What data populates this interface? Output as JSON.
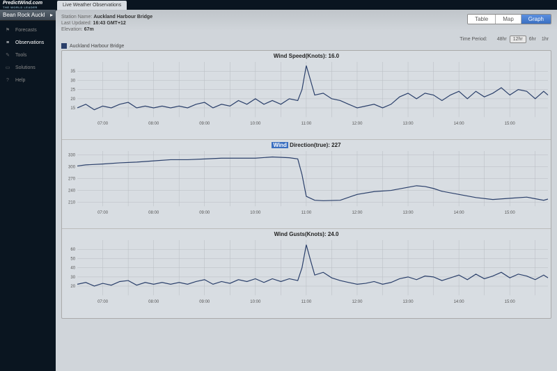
{
  "brand": {
    "name": "PredictWind.com",
    "tagline": "THE WORLD LEADER"
  },
  "station_selector": "Bean Rock Auckl",
  "nav": [
    {
      "icon": "flag",
      "label": "Forecasts",
      "active": false
    },
    {
      "icon": "bars",
      "label": "Observations",
      "active": true
    },
    {
      "icon": "wrench",
      "label": "Tools",
      "active": false
    },
    {
      "icon": "doc",
      "label": "Solutions",
      "active": false
    },
    {
      "icon": "help",
      "label": "Help",
      "active": false
    }
  ],
  "tab_label": "Live Weather Observations",
  "station": {
    "name_label": "Station Name:",
    "name": "Auckland Harbour Bridge",
    "updated_label": "Last Updated:",
    "updated": "16:43 GMT+12",
    "elevation_label": "Elevation:",
    "elevation": "67m"
  },
  "views": [
    {
      "label": "Table",
      "active": false
    },
    {
      "label": "Map",
      "active": false
    },
    {
      "label": "Graph",
      "active": true
    }
  ],
  "period": {
    "label": "Time Period:",
    "options": [
      {
        "label": "48hr",
        "active": false
      },
      {
        "label": "12hr",
        "active": true
      },
      {
        "label": "6hr",
        "active": false
      },
      {
        "label": "1hr",
        "active": false
      }
    ]
  },
  "legend": "Auckland Harbour Bridge",
  "x_axis": {
    "start_min": 390,
    "end_min": 945,
    "ticks": [
      "07:00",
      "08:00",
      "09:00",
      "10:00",
      "11:00",
      "12:00",
      "13:00",
      "14:00",
      "15:00"
    ],
    "tick_positions": [
      420,
      480,
      540,
      600,
      660,
      720,
      780,
      840,
      900
    ]
  },
  "charts": [
    {
      "title_prefix": "Wind Speed(Knots): ",
      "value": "16.0",
      "hilite": false,
      "ylim": [
        10,
        40
      ],
      "yticks": [
        15,
        20,
        25,
        30,
        35
      ],
      "ytick_labels": [
        "15",
        "20",
        "25",
        "30",
        "35"
      ],
      "color": "#2a3f6a",
      "data": [
        [
          390,
          15
        ],
        [
          400,
          17
        ],
        [
          410,
          14
        ],
        [
          420,
          16
        ],
        [
          430,
          15
        ],
        [
          440,
          17
        ],
        [
          450,
          18
        ],
        [
          460,
          15
        ],
        [
          470,
          16
        ],
        [
          480,
          15
        ],
        [
          490,
          16
        ],
        [
          500,
          15
        ],
        [
          510,
          16
        ],
        [
          520,
          15
        ],
        [
          530,
          17
        ],
        [
          540,
          18
        ],
        [
          550,
          15
        ],
        [
          560,
          17
        ],
        [
          570,
          16
        ],
        [
          580,
          19
        ],
        [
          590,
          17
        ],
        [
          600,
          20
        ],
        [
          610,
          17
        ],
        [
          620,
          19
        ],
        [
          630,
          17
        ],
        [
          640,
          20
        ],
        [
          650,
          19
        ],
        [
          655,
          25
        ],
        [
          660,
          38
        ],
        [
          665,
          30
        ],
        [
          670,
          22
        ],
        [
          680,
          23
        ],
        [
          690,
          20
        ],
        [
          700,
          19
        ],
        [
          710,
          17
        ],
        [
          720,
          15
        ],
        [
          730,
          16
        ],
        [
          740,
          17
        ],
        [
          750,
          15
        ],
        [
          760,
          17
        ],
        [
          770,
          21
        ],
        [
          780,
          23
        ],
        [
          790,
          20
        ],
        [
          800,
          23
        ],
        [
          810,
          22
        ],
        [
          820,
          19
        ],
        [
          830,
          22
        ],
        [
          840,
          24
        ],
        [
          850,
          20
        ],
        [
          860,
          24
        ],
        [
          870,
          21
        ],
        [
          880,
          23
        ],
        [
          890,
          26
        ],
        [
          900,
          22
        ],
        [
          910,
          25
        ],
        [
          920,
          24
        ],
        [
          930,
          20
        ],
        [
          940,
          24
        ],
        [
          945,
          22
        ]
      ]
    },
    {
      "title_prefix": "Direction(true): ",
      "title_prefix_hilite": "Wind",
      "value": "227",
      "hilite": true,
      "ylim": [
        200,
        340
      ],
      "yticks": [
        210,
        240,
        270,
        300,
        330
      ],
      "ytick_labels": [
        "210",
        "240",
        "270",
        "300",
        "330"
      ],
      "color": "#2a3f6a",
      "data": [
        [
          390,
          302
        ],
        [
          400,
          305
        ],
        [
          420,
          307
        ],
        [
          440,
          310
        ],
        [
          460,
          312
        ],
        [
          480,
          315
        ],
        [
          500,
          318
        ],
        [
          520,
          318
        ],
        [
          540,
          320
        ],
        [
          560,
          322
        ],
        [
          580,
          322
        ],
        [
          600,
          322
        ],
        [
          620,
          325
        ],
        [
          640,
          323
        ],
        [
          650,
          320
        ],
        [
          655,
          280
        ],
        [
          660,
          225
        ],
        [
          670,
          215
        ],
        [
          680,
          214
        ],
        [
          700,
          215
        ],
        [
          720,
          230
        ],
        [
          740,
          237
        ],
        [
          760,
          240
        ],
        [
          780,
          248
        ],
        [
          790,
          252
        ],
        [
          800,
          250
        ],
        [
          810,
          245
        ],
        [
          820,
          238
        ],
        [
          840,
          230
        ],
        [
          860,
          222
        ],
        [
          880,
          217
        ],
        [
          900,
          220
        ],
        [
          920,
          223
        ],
        [
          940,
          215
        ],
        [
          945,
          218
        ]
      ]
    },
    {
      "title_prefix": "Wind Gusts(Knots): ",
      "value": "24.0",
      "hilite": false,
      "ylim": [
        10,
        70
      ],
      "yticks": [
        20,
        30,
        40,
        50,
        60
      ],
      "ytick_labels": [
        "20",
        "30",
        "40",
        "50",
        "60"
      ],
      "color": "#2a3f6a",
      "data": [
        [
          390,
          22
        ],
        [
          400,
          24
        ],
        [
          410,
          20
        ],
        [
          420,
          23
        ],
        [
          430,
          21
        ],
        [
          440,
          25
        ],
        [
          450,
          26
        ],
        [
          460,
          21
        ],
        [
          470,
          24
        ],
        [
          480,
          22
        ],
        [
          490,
          24
        ],
        [
          500,
          22
        ],
        [
          510,
          24
        ],
        [
          520,
          22
        ],
        [
          530,
          25
        ],
        [
          540,
          27
        ],
        [
          550,
          22
        ],
        [
          560,
          25
        ],
        [
          570,
          23
        ],
        [
          580,
          27
        ],
        [
          590,
          25
        ],
        [
          600,
          28
        ],
        [
          610,
          24
        ],
        [
          620,
          28
        ],
        [
          630,
          25
        ],
        [
          640,
          28
        ],
        [
          650,
          26
        ],
        [
          655,
          40
        ],
        [
          660,
          65
        ],
        [
          665,
          48
        ],
        [
          670,
          32
        ],
        [
          680,
          35
        ],
        [
          690,
          29
        ],
        [
          700,
          26
        ],
        [
          710,
          24
        ],
        [
          720,
          22
        ],
        [
          730,
          23
        ],
        [
          740,
          25
        ],
        [
          750,
          22
        ],
        [
          760,
          24
        ],
        [
          770,
          28
        ],
        [
          780,
          30
        ],
        [
          790,
          27
        ],
        [
          800,
          31
        ],
        [
          810,
          30
        ],
        [
          820,
          26
        ],
        [
          830,
          29
        ],
        [
          840,
          32
        ],
        [
          850,
          27
        ],
        [
          860,
          33
        ],
        [
          870,
          28
        ],
        [
          880,
          31
        ],
        [
          890,
          35
        ],
        [
          900,
          29
        ],
        [
          910,
          33
        ],
        [
          920,
          31
        ],
        [
          930,
          27
        ],
        [
          940,
          32
        ],
        [
          945,
          29
        ]
      ]
    }
  ],
  "colors": {
    "background": "#d0d5da",
    "chart_bg": "#d8dde2",
    "grid": "#b8bdc2",
    "accent": "#3a6fc0"
  }
}
